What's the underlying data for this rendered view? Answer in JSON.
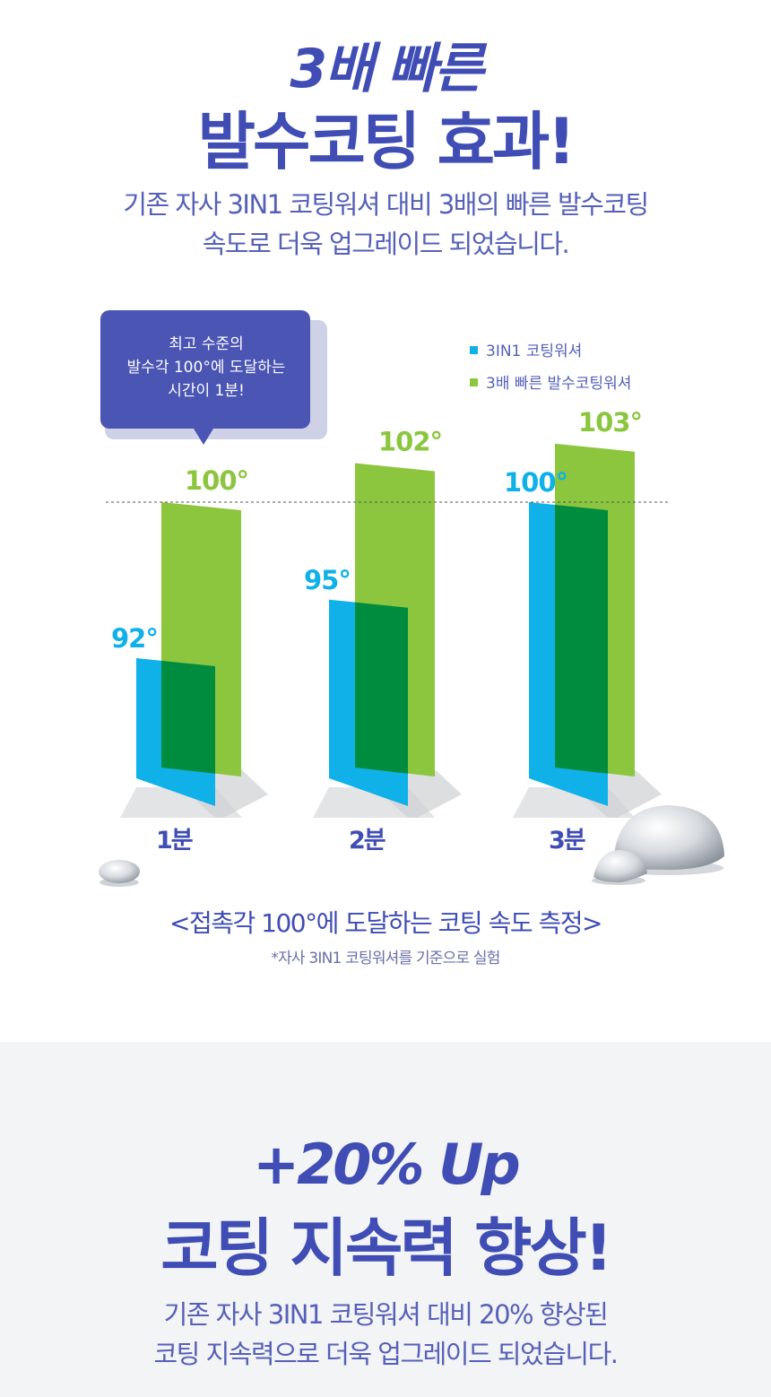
{
  "headline1": {
    "line1": "3배 빠른",
    "line2": "발수코팅 효과!"
  },
  "subtext1": {
    "line1": "기존 자사 3IN1 코팅워셔 대비 3배의 빠른 발수코팅",
    "line2": "속도로 더욱 업그레이드 되었습니다."
  },
  "bubble": {
    "line1": "최고 수준의",
    "line2": "발수각 100°에 도달하는",
    "line3": "시간이 1분!"
  },
  "colors": {
    "accent": "#3f4db4",
    "blue": "#0fb1e8",
    "green": "#8cc63f",
    "overlap": "#008c3e",
    "bubble": "#4a55b4"
  },
  "chart_data": {
    "type": "bar",
    "categories": [
      "1분",
      "2분",
      "3분"
    ],
    "series": [
      {
        "name": "3IN1 코팅워셔",
        "values": [
          92,
          95,
          100
        ],
        "labels": [
          "92°",
          "95°",
          "100°"
        ]
      },
      {
        "name": "3배 빠른 발수코팅워셔",
        "values": [
          100,
          102,
          103
        ],
        "labels": [
          "100°",
          "102°",
          "103°"
        ]
      }
    ],
    "reference_line": 100,
    "legend_position": "top-right",
    "ylabel": "",
    "xlabel": ""
  },
  "caption": {
    "title": "<접촉각 100°에 도달하는 코팅 속도 측정>",
    "note": "*자사 3IN1 코팅워셔를 기준으로 실험"
  },
  "headline2": {
    "line1": "+20% Up",
    "line2": "코팅 지속력 향상!"
  },
  "subtext2": {
    "line1": "기존 자사 3IN1 코팅워셔 대비 20% 향상된",
    "line2": "코팅 지속력으로 더욱 업그레이드 되었습니다."
  }
}
